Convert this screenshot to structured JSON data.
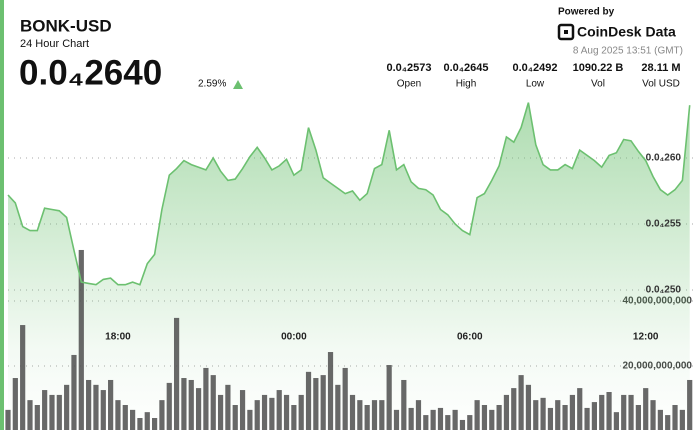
{
  "header": {
    "title": "BONK-USD",
    "subtitle": "24 Hour Chart",
    "price": "0.0₄2640",
    "change": "2.59%",
    "powered_by": "Powered by",
    "brand": "CoinDesk Data",
    "timestamp": "8 Aug 2025 13:51 (GMT)"
  },
  "stats": [
    {
      "value": "0.0₄2573",
      "label": "Open"
    },
    {
      "value": "0.0₄2645",
      "label": "High"
    },
    {
      "value": "0.0₄2492",
      "label": "Low"
    },
    {
      "value": "1090.22 B",
      "label": "Vol"
    },
    {
      "value": "28.11 M",
      "label": "Vol USD"
    }
  ],
  "chart_data": {
    "type": "line",
    "grid": true,
    "x": [
      "14:15",
      "14:30",
      "14:45",
      "15:00",
      "15:15",
      "15:30",
      "15:45",
      "16:00",
      "16:15",
      "16:30",
      "16:45",
      "17:00",
      "17:15",
      "17:30",
      "17:45",
      "18:00",
      "18:15",
      "18:30",
      "18:45",
      "19:00",
      "19:15",
      "19:30",
      "19:45",
      "20:00",
      "20:15",
      "20:30",
      "20:45",
      "21:00",
      "21:15",
      "21:30",
      "21:45",
      "22:00",
      "22:15",
      "22:30",
      "22:45",
      "23:00",
      "23:15",
      "23:30",
      "23:45",
      "00:00",
      "00:15",
      "00:30",
      "00:45",
      "01:00",
      "01:15",
      "01:30",
      "01:45",
      "02:00",
      "02:15",
      "02:30",
      "02:45",
      "03:00",
      "03:15",
      "03:30",
      "03:45",
      "04:00",
      "04:15",
      "04:30",
      "04:45",
      "05:00",
      "05:15",
      "05:30",
      "05:45",
      "06:00",
      "06:15",
      "06:30",
      "06:45",
      "07:00",
      "07:15",
      "07:30",
      "07:45",
      "08:00",
      "08:15",
      "08:30",
      "08:45",
      "09:00",
      "09:15",
      "09:30",
      "09:45",
      "10:00",
      "10:15",
      "10:30",
      "10:45",
      "11:00",
      "11:15",
      "11:30",
      "11:45",
      "12:00",
      "12:15",
      "12:30",
      "12:45",
      "13:00",
      "13:15",
      "13:30"
    ],
    "xticks": [
      "18:00",
      "00:00",
      "06:00",
      "12:00"
    ],
    "ylim": [
      2.48e-05,
      2.65e-05
    ],
    "yticks": [
      {
        "value": 2.6e-05,
        "label": "0.0₄260"
      },
      {
        "value": 2.55e-05,
        "label": "0.0₄255"
      },
      {
        "value": 2.5e-05,
        "label": "0.0₄250"
      }
    ],
    "y2lim": [
      0,
      60000000000
    ],
    "y2ticks": [
      {
        "value": 40000000000,
        "label": "40,000,000,000"
      },
      {
        "value": 20000000000,
        "label": "20,000,000,000"
      }
    ],
    "series": [
      {
        "color": "#6cc070",
        "values": [
          2.572e-05,
          2.566e-05,
          2.548e-05,
          2.545e-05,
          2.545e-05,
          2.562e-05,
          2.561e-05,
          2.56e-05,
          2.555e-05,
          2.53e-05,
          2.506e-05,
          2.505e-05,
          2.504e-05,
          2.508e-05,
          2.509e-05,
          2.504e-05,
          2.504e-05,
          2.506e-05,
          2.504e-05,
          2.52e-05,
          2.527e-05,
          2.561e-05,
          2.587e-05,
          2.592e-05,
          2.598e-05,
          2.595e-05,
          2.593e-05,
          2.591e-05,
          2.6e-05,
          2.59e-05,
          2.583e-05,
          2.584e-05,
          2.592e-05,
          2.601e-05,
          2.608e-05,
          2.6e-05,
          2.591e-05,
          2.594e-05,
          2.599e-05,
          2.587e-05,
          2.591e-05,
          2.623e-05,
          2.606e-05,
          2.585e-05,
          2.581e-05,
          2.577e-05,
          2.573e-05,
          2.575e-05,
          2.568e-05,
          2.573e-05,
          2.592e-05,
          2.595e-05,
          2.621e-05,
          2.591e-05,
          2.595e-05,
          2.582e-05,
          2.577e-05,
          2.576e-05,
          2.572e-05,
          2.561e-05,
          2.557e-05,
          2.55e-05,
          2.545e-05,
          2.542e-05,
          2.57e-05,
          2.573e-05,
          2.583e-05,
          2.594e-05,
          2.616e-05,
          2.612e-05,
          2.623e-05,
          2.642e-05,
          2.61e-05,
          2.595e-05,
          2.591e-05,
          2.591e-05,
          2.595e-05,
          2.592e-05,
          2.606e-05,
          2.602e-05,
          2.598e-05,
          2.593e-05,
          2.602e-05,
          2.604e-05,
          2.614e-05,
          2.613e-05,
          2.605e-05,
          2.598e-05,
          2.586e-05,
          2.576e-05,
          2.572e-05,
          2.576e-05,
          2.583e-05,
          2.64e-05
        ]
      },
      {
        "type": "bar",
        "axis": "y2",
        "color": "#4d4d4d",
        "values": [
          6500000000,
          16300000000,
          32600000000,
          9500000000,
          8000000000,
          12600000000,
          11100000000,
          11100000000,
          14200000000,
          23400000000,
          55700000000,
          15700000000,
          14200000000,
          12600000000,
          15700000000,
          9500000000,
          8000000000,
          6500000000,
          4000000000,
          5800000000,
          4000000000,
          9500000000,
          14800000000,
          34800000000,
          16300000000,
          15700000000,
          13200000000,
          19400000000,
          17200000000,
          11100000000,
          14200000000,
          8000000000,
          12600000000,
          6500000000,
          9500000000,
          11100000000,
          10200000000,
          12600000000,
          11100000000,
          8000000000,
          11100000000,
          18200000000,
          16300000000,
          17200000000,
          24300000000,
          14200000000,
          19400000000,
          11100000000,
          9500000000,
          8000000000,
          9500000000,
          9500000000,
          20300000000,
          6500000000,
          15700000000,
          7100000000,
          9500000000,
          4900000000,
          6500000000,
          7100000000,
          4900000000,
          6500000000,
          3400000000,
          4900000000,
          9500000000,
          8000000000,
          6500000000,
          8000000000,
          11100000000,
          13200000000,
          17200000000,
          14200000000,
          9500000000,
          10200000000,
          7100000000,
          9500000000,
          8000000000,
          11100000000,
          13200000000,
          7100000000,
          8900000000,
          11100000000,
          12000000000,
          5800000000,
          11100000000,
          11100000000,
          8000000000,
          13200000000,
          9500000000,
          6500000000,
          4900000000,
          8000000000,
          6500000000,
          15700000000
        ]
      }
    ]
  }
}
